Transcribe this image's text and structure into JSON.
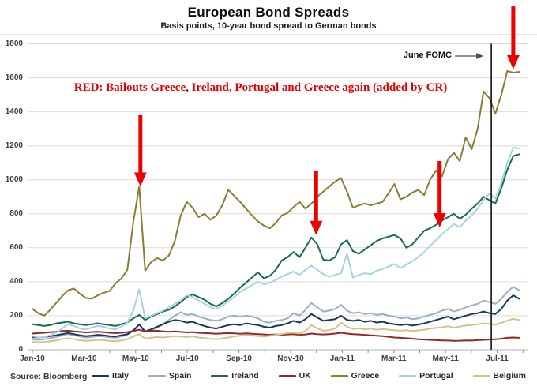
{
  "header": {
    "title": "European Bond Spreads",
    "subtitle": "Basis points, 10-year bond spread to German bonds"
  },
  "annotations": {
    "bailouts_note": "RED: Bailouts Greece, Ireland, Portugal and Greece again (added by CR)",
    "june_fomc_label": "June FOMC",
    "arrow_color": "#ee0000"
  },
  "source": "Source: Bloomberg",
  "chart_data": {
    "type": "line",
    "title": "European Bond Spreads",
    "subtitle": "Basis points, 10-year bond spread to German bonds",
    "ylabel": "basis points",
    "ylim": [
      0,
      1800
    ],
    "y_tick_step": 200,
    "grid": "horizontal",
    "legend_position": "bottom",
    "x_sampling": "weekly, index 0 = Jan-2010, 83 points ending mid-Jul-2011",
    "x_tick_labels": [
      "Jan-10",
      "Mar-10",
      "May-10",
      "Jul-10",
      "Sep-10",
      "Nov-10",
      "Jan-11",
      "Mar-11",
      "May-11",
      "Jul-11"
    ],
    "x_tick_interval_weeks": 8.7,
    "vline": {
      "label": "June FOMC",
      "x_week": 77.3
    },
    "event_arrows": [
      {
        "event": "Greece bailout May-2010",
        "x_week": 18.2,
        "from_bp": 1380,
        "to_bp": 1025
      },
      {
        "event": "Ireland bailout Nov-2010",
        "x_week": 47.8,
        "from_bp": 1055,
        "to_bp": 740
      },
      {
        "event": "Portugal bailout May-2011",
        "x_week": 68.6,
        "from_bp": 1110,
        "to_bp": 785
      },
      {
        "event": "Greece again Jul-2011",
        "x_week": 81.0,
        "from_bp": 2020,
        "to_bp": 1715
      }
    ],
    "draw_order": [
      "Spain",
      "Italy",
      "UK",
      "Belgium",
      "Ireland",
      "Portugal",
      "Greece"
    ],
    "series": [
      {
        "name": "Italy",
        "color": "#17375e",
        "values": [
          72,
          70,
          75,
          80,
          85,
          92,
          98,
          92,
          85,
          80,
          83,
          88,
          85,
          80,
          78,
          85,
          92,
          112,
          148,
          108,
          120,
          135,
          150,
          165,
          175,
          170,
          160,
          165,
          150,
          140,
          130,
          125,
          135,
          145,
          150,
          145,
          155,
          150,
          145,
          135,
          130,
          140,
          145,
          155,
          170,
          160,
          180,
          210,
          190,
          170,
          175,
          180,
          200,
          175,
          170,
          175,
          165,
          170,
          160,
          165,
          155,
          150,
          145,
          150,
          142,
          148,
          155,
          165,
          175,
          185,
          195,
          180,
          190,
          200,
          210,
          215,
          225,
          215,
          210,
          240,
          290,
          320,
          300
        ]
      },
      {
        "name": "Spain",
        "color": "#9bafc9",
        "values": [
          60,
          58,
          62,
          68,
          75,
          85,
          92,
          85,
          78,
          72,
          75,
          80,
          78,
          73,
          70,
          78,
          88,
          115,
          150,
          105,
          115,
          130,
          150,
          175,
          200,
          220,
          205,
          210,
          195,
          185,
          175,
          170,
          180,
          195,
          200,
          195,
          200,
          195,
          185,
          165,
          160,
          170,
          175,
          185,
          215,
          200,
          235,
          275,
          250,
          225,
          230,
          240,
          265,
          230,
          215,
          220,
          210,
          215,
          205,
          210,
          200,
          195,
          185,
          190,
          180,
          185,
          195,
          205,
          215,
          230,
          240,
          225,
          235,
          250,
          260,
          270,
          290,
          280,
          270,
          300,
          340,
          370,
          350
        ]
      },
      {
        "name": "Ireland",
        "color": "#1a6b54",
        "values": [
          150,
          145,
          140,
          145,
          155,
          160,
          165,
          155,
          150,
          145,
          150,
          155,
          150,
          145,
          140,
          150,
          160,
          185,
          205,
          175,
          195,
          210,
          225,
          235,
          255,
          280,
          310,
          325,
          310,
          295,
          270,
          255,
          275,
          300,
          330,
          365,
          395,
          425,
          455,
          420,
          435,
          470,
          525,
          545,
          575,
          545,
          600,
          660,
          620,
          530,
          525,
          545,
          620,
          645,
          580,
          565,
          590,
          615,
          640,
          655,
          665,
          675,
          655,
          600,
          620,
          660,
          700,
          715,
          735,
          760,
          780,
          800,
          770,
          795,
          830,
          860,
          900,
          880,
          860,
          950,
          1060,
          1140,
          1150
        ]
      },
      {
        "name": "UK",
        "color": "#942824",
        "values": [
          95,
          98,
          100,
          103,
          106,
          110,
          112,
          108,
          105,
          102,
          104,
          106,
          103,
          100,
          98,
          100,
          104,
          110,
          118,
          108,
          110,
          112,
          108,
          106,
          108,
          105,
          102,
          104,
          100,
          98,
          96,
          94,
          96,
          98,
          96,
          94,
          96,
          94,
          92,
          90,
          88,
          90,
          88,
          90,
          92,
          88,
          90,
          95,
          92,
          90,
          92,
          95,
          100,
          95,
          92,
          90,
          88,
          85,
          82,
          80,
          76,
          72,
          70,
          68,
          65,
          62,
          60,
          58,
          56,
          55,
          54,
          52,
          53,
          55,
          54,
          56,
          58,
          60,
          62,
          65,
          70,
          72,
          70
        ]
      },
      {
        "name": "Greece",
        "color": "#8a7d33",
        "values": [
          240,
          215,
          200,
          235,
          275,
          315,
          350,
          360,
          330,
          305,
          300,
          320,
          335,
          345,
          390,
          420,
          470,
          750,
          960,
          465,
          515,
          540,
          525,
          555,
          640,
          790,
          870,
          835,
          780,
          800,
          765,
          790,
          850,
          940,
          905,
          870,
          830,
          790,
          755,
          730,
          715,
          745,
          790,
          805,
          840,
          870,
          830,
          860,
          900,
          930,
          960,
          990,
          1010,
          930,
          835,
          850,
          860,
          850,
          860,
          870,
          920,
          975,
          885,
          900,
          925,
          940,
          910,
          1000,
          1055,
          1020,
          1120,
          1160,
          1110,
          1250,
          1180,
          1300,
          1520,
          1480,
          1390,
          1500,
          1640,
          1630,
          1635
        ]
      },
      {
        "name": "Portugal",
        "color": "#a5d5da",
        "values": [
          65,
          70,
          75,
          85,
          100,
          125,
          150,
          140,
          125,
          120,
          130,
          140,
          135,
          125,
          120,
          135,
          160,
          230,
          355,
          185,
          200,
          215,
          230,
          250,
          270,
          290,
          320,
          310,
          290,
          270,
          250,
          240,
          260,
          285,
          310,
          340,
          360,
          380,
          400,
          385,
          395,
          410,
          430,
          445,
          460,
          440,
          470,
          495,
          470,
          445,
          430,
          440,
          450,
          565,
          425,
          440,
          450,
          445,
          465,
          475,
          490,
          505,
          480,
          500,
          520,
          545,
          575,
          610,
          645,
          680,
          710,
          740,
          720,
          760,
          790,
          830,
          880,
          920,
          890,
          980,
          1100,
          1190,
          1185
        ]
      },
      {
        "name": "Belgium",
        "color": "#d3c28a",
        "values": [
          45,
          44,
          46,
          50,
          55,
          62,
          68,
          62,
          56,
          52,
          55,
          58,
          56,
          52,
          50,
          55,
          62,
          78,
          92,
          65,
          70,
          75,
          72,
          76,
          80,
          78,
          75,
          78,
          72,
          68,
          64,
          62,
          66,
          72,
          78,
          82,
          86,
          84,
          80,
          78,
          82,
          88,
          92,
          98,
          100,
          95,
          110,
          145,
          125,
          112,
          115,
          125,
          160,
          135,
          122,
          126,
          120,
          124,
          118,
          122,
          118,
          115,
          112,
          115,
          110,
          114,
          118,
          124,
          128,
          132,
          138,
          130,
          136,
          142,
          146,
          150,
          155,
          152,
          148,
          158,
          172,
          182,
          175
        ]
      }
    ]
  }
}
